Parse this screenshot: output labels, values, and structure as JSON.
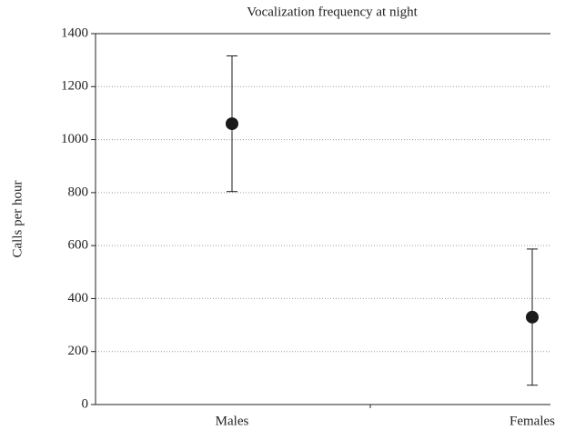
{
  "chart_data": {
    "type": "scatter",
    "title": "Vocalization frequency at night",
    "y_label": "Calls per hour",
    "categories": [
      "Males",
      "Females"
    ],
    "values": [
      1060,
      330
    ],
    "errors": [
      256,
      257
    ],
    "color": "#1a1a1a",
    "ylim": [
      0,
      1400
    ],
    "yticks": [
      0,
      200,
      400,
      600,
      800,
      1000,
      1200,
      1400
    ],
    "grid": true
  }
}
